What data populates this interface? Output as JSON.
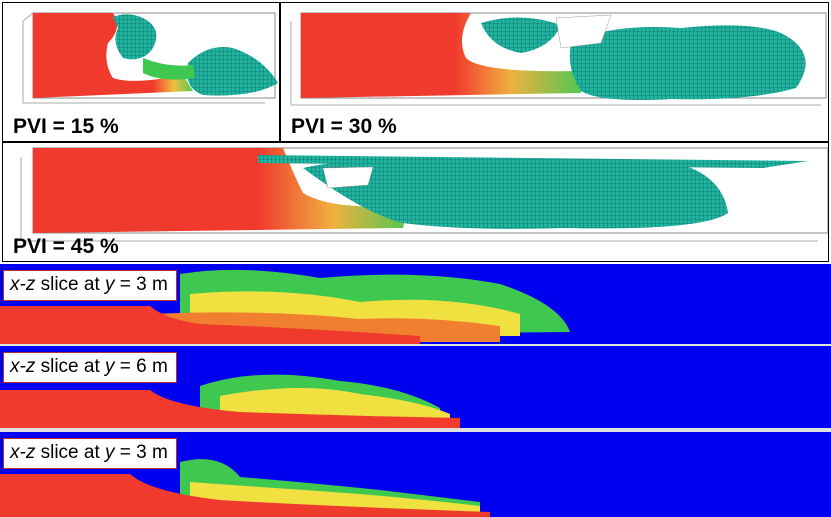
{
  "panels": [
    {
      "label": "PVI = 15 %"
    },
    {
      "label": "PVI = 30 %"
    },
    {
      "label": "PVI = 45 %"
    }
  ],
  "slices": [
    {
      "prefix": "x-z",
      "middle": " slice at ",
      "var": "y",
      "suffix": " = 3 m"
    },
    {
      "prefix": "x-z",
      "middle": " slice at ",
      "var": "y",
      "suffix": " = 6 m"
    },
    {
      "prefix": "x-z",
      "middle": " slice at ",
      "var": "y",
      "suffix": " = 3 m"
    }
  ],
  "colors": {
    "injected_fluid": "#f03a2e",
    "front_yellow": "#f0e040",
    "front_green": "#3ec850",
    "isosurface": "#1fb3a0",
    "background_fluid": "#0000f0"
  }
}
